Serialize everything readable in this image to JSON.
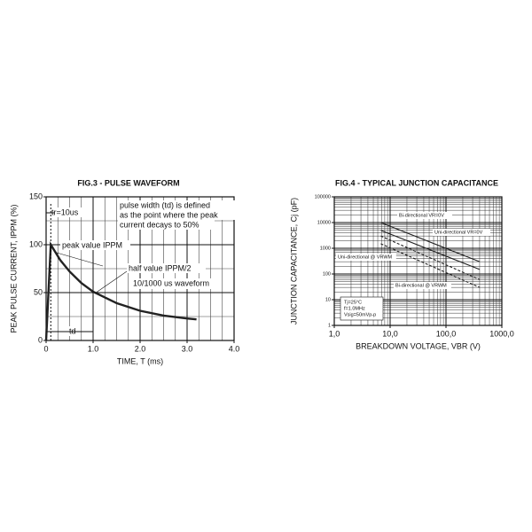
{
  "chart_data": [
    {
      "type": "line",
      "title": "FIG.3 -  PULSE WAVEFORM",
      "x_label": "TIME, T (ms)",
      "y_label": "PEAK PULSE CURRENT, IPPM (%)",
      "xlim": [
        0,
        4
      ],
      "ylim": [
        0,
        150
      ],
      "xticks": [
        0,
        {
          "value": 1,
          "label": "1.0"
        },
        {
          "value": 2,
          "label": "2.0"
        },
        {
          "value": 3,
          "label": "3.0"
        },
        {
          "value": 4,
          "label": "4.0"
        }
      ],
      "yticks": [
        0,
        50,
        100,
        150
      ],
      "grid": true,
      "series": [
        {
          "name": "10/1000 us waveform",
          "color": "#222222",
          "x": [
            0,
            0.1,
            0.3,
            0.5,
            0.75,
            1.0,
            1.5,
            2.0,
            2.5,
            3.0,
            3.2
          ],
          "values": [
            0,
            100,
            84,
            72,
            60,
            51,
            39,
            31,
            26,
            23,
            22
          ]
        }
      ],
      "annotations": [
        "tr=10us",
        "pulse width (td) is defined",
        "as the point where the peak",
        "current decays to 50%",
        "peak value IPPM",
        "half value IPPM/2",
        "td"
      ]
    },
    {
      "type": "line",
      "title": "FIG.4 -  TYPICAL JUNCTION CAPACITANCE",
      "x_label": "BREAKDOWN VOLTAGE, VBR (V)",
      "y_label": "JUNCTION CAPACITANCE, Cj (pF)",
      "log_x": true,
      "log_y": true,
      "xlim": [
        1,
        1000
      ],
      "ylim": [
        1,
        100000
      ],
      "xticks": [
        {
          "value": 1,
          "label": "1,0"
        },
        {
          "value": 10,
          "label": "10,0"
        },
        {
          "value": 100,
          "label": "100,0"
        },
        {
          "value": 1000,
          "label": "1000,0"
        }
      ],
      "yticks": [
        1,
        10,
        100,
        1000,
        10000,
        100000
      ],
      "grid": true,
      "series": [
        {
          "name": "Uni-directional VR=0V",
          "color": "#222222",
          "line_style": "solid",
          "x": [
            6.8,
            400
          ],
          "values": [
            10000,
            300
          ]
        },
        {
          "name": "Bi-directional VR=0V",
          "color": "#222222",
          "line_style": "solid",
          "x": [
            6.8,
            400
          ],
          "values": [
            5000,
            150
          ]
        },
        {
          "name": "Uni-directional @ VRWM",
          "color": "#222222",
          "line_style": "dashed",
          "x": [
            6.8,
            400
          ],
          "values": [
            3000,
            60
          ]
        },
        {
          "name": "Bi-directional @ VRWM",
          "color": "#222222",
          "line_style": "dashed",
          "x": [
            6.8,
            400
          ],
          "values": [
            1500,
            30
          ]
        }
      ],
      "annotations": [
        "Tj=25°C",
        "f=1.0MHz",
        "Vsig=50mVp-p"
      ]
    }
  ]
}
